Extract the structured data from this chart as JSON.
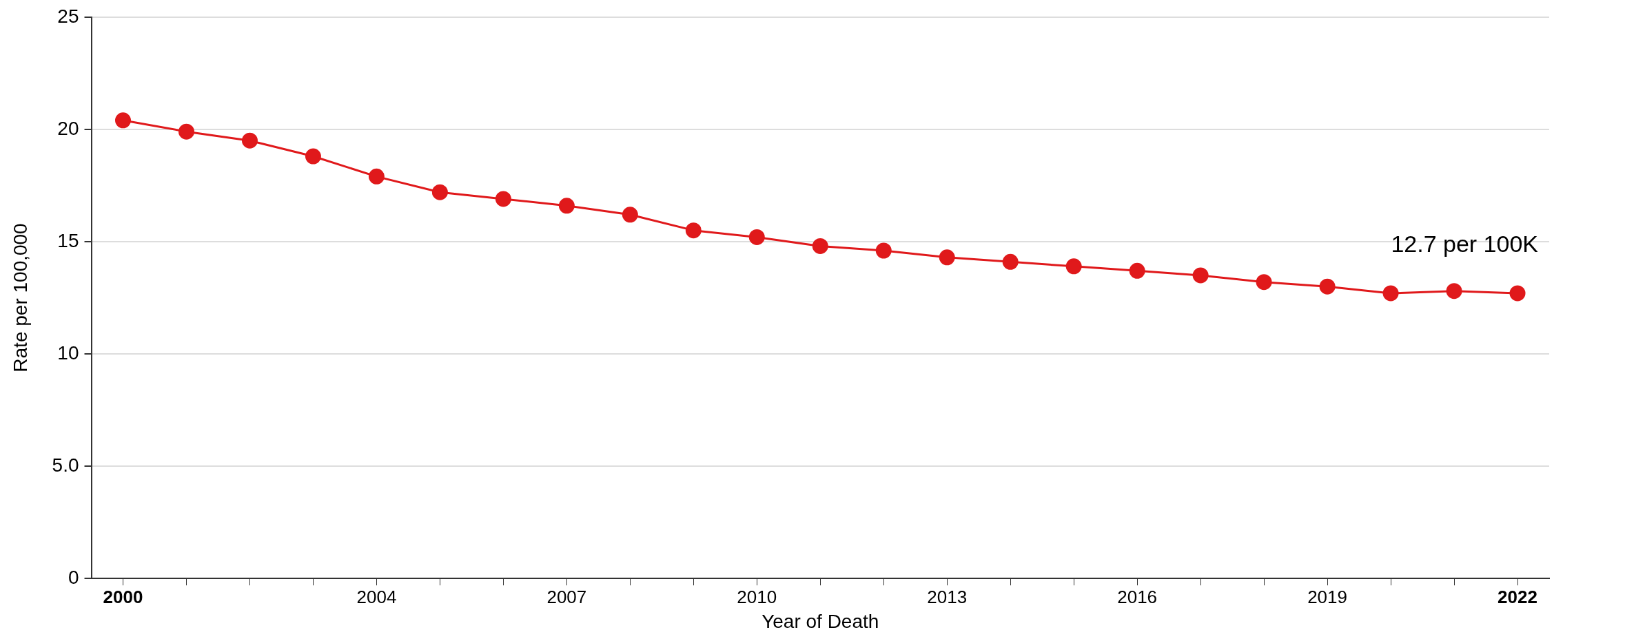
{
  "chart_data": {
    "type": "line",
    "xlabel": "Year of Death",
    "ylabel": "Rate per 100,000",
    "x": [
      2000,
      2001,
      2002,
      2003,
      2004,
      2005,
      2006,
      2007,
      2008,
      2009,
      2010,
      2011,
      2012,
      2013,
      2014,
      2015,
      2016,
      2017,
      2018,
      2019,
      2020,
      2021,
      2022
    ],
    "series": [
      {
        "color": "#e0191b",
        "values": [
          20.4,
          19.9,
          19.5,
          18.8,
          17.9,
          17.2,
          16.9,
          16.6,
          16.2,
          15.5,
          15.2,
          14.8,
          14.6,
          14.3,
          14.1,
          13.9,
          13.7,
          13.5,
          13.2,
          13.0,
          12.7,
          12.8,
          12.7
        ]
      }
    ],
    "xlim": [
      1999.5,
      2022.5
    ],
    "xticks": [
      2000,
      {
        "value": 2001,
        "label": null
      },
      {
        "value": 2002,
        "label": null
      },
      {
        "value": 2003,
        "label": null
      },
      2004,
      {
        "value": 2005,
        "label": null
      },
      {
        "value": 2006,
        "label": null
      },
      2007,
      {
        "value": 2008,
        "label": null
      },
      {
        "value": 2009,
        "label": null
      },
      2010,
      {
        "value": 2011,
        "label": null
      },
      {
        "value": 2012,
        "label": null
      },
      2013,
      {
        "value": 2014,
        "label": null
      },
      {
        "value": 2015,
        "label": null
      },
      2016,
      {
        "value": 2017,
        "label": null
      },
      {
        "value": 2018,
        "label": null
      },
      2019,
      {
        "value": 2020,
        "label": null
      },
      {
        "value": 2021,
        "label": null
      },
      2022
    ],
    "ylim": [
      0,
      25
    ],
    "yticks": [
      0,
      {
        "value": 5,
        "label": "5.0"
      },
      10,
      15,
      20,
      25
    ],
    "annotations": [
      {
        "text": "12.7 per 100K",
        "x": 2022,
        "y": 12.7
      }
    ],
    "grid": "y",
    "legend": false,
    "marker": "circle",
    "line_style": "solid"
  }
}
